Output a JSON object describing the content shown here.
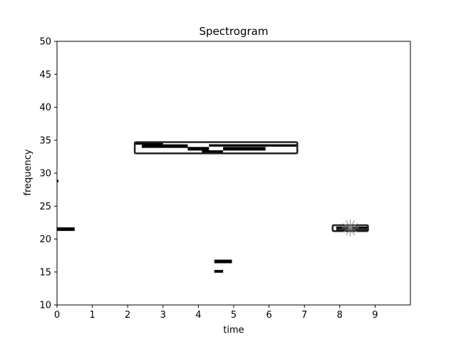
{
  "chart_data": {
    "type": "spectrogram",
    "title": "Spectrogram",
    "xlabel": "time",
    "ylabel": "frequency",
    "xlim": [
      0,
      10
    ],
    "ylim": [
      10,
      50
    ],
    "xticks": [
      0,
      1,
      2,
      3,
      4,
      5,
      6,
      7,
      8,
      9
    ],
    "yticks": [
      10,
      15,
      20,
      25,
      30,
      35,
      40,
      45,
      50
    ],
    "grid": false,
    "segments": [
      {
        "t0": 0.0,
        "t1": 0.5,
        "freq": 21.5,
        "thickness": 0.45
      },
      {
        "t0": 2.2,
        "t1": 3.0,
        "freq": 34.5,
        "thickness": 0.3
      },
      {
        "t0": 2.4,
        "t1": 3.7,
        "freq": 34.1,
        "thickness": 0.45
      },
      {
        "t0": 3.7,
        "t1": 4.3,
        "freq": 33.7,
        "thickness": 0.45
      },
      {
        "t0": 4.1,
        "t1": 4.7,
        "freq": 33.2,
        "thickness": 0.45
      },
      {
        "t0": 4.3,
        "t1": 6.8,
        "freq": 34.2,
        "thickness": 0.3
      },
      {
        "t0": 4.7,
        "t1": 5.9,
        "freq": 33.7,
        "thickness": 0.45
      },
      {
        "t0": 4.45,
        "t1": 4.95,
        "freq": 16.6,
        "thickness": 0.45
      },
      {
        "t0": 4.45,
        "t1": 4.7,
        "freq": 15.1,
        "thickness": 0.35
      },
      {
        "t0": 7.9,
        "t1": 8.8,
        "freq": 21.7,
        "thickness": 0.3
      },
      {
        "t0": 7.9,
        "t1": 8.8,
        "freq": 21.3,
        "thickness": 0.3
      },
      {
        "t0": 0.0,
        "t1": 0.04,
        "freq": 28.8,
        "thickness": 0.3
      }
    ],
    "boxes": [
      {
        "t0": 2.2,
        "t1": 6.8,
        "f0": 33.0,
        "f1": 34.7
      },
      {
        "t0": 7.8,
        "t1": 8.8,
        "f0": 21.2,
        "f1": 22.1
      }
    ],
    "markers": [
      {
        "t": 8.3,
        "freq": 21.7,
        "shape": "star"
      }
    ],
    "colors": {
      "signal": "#000000",
      "box": "#222222",
      "marker": "#888888",
      "axes": "#000000"
    }
  }
}
